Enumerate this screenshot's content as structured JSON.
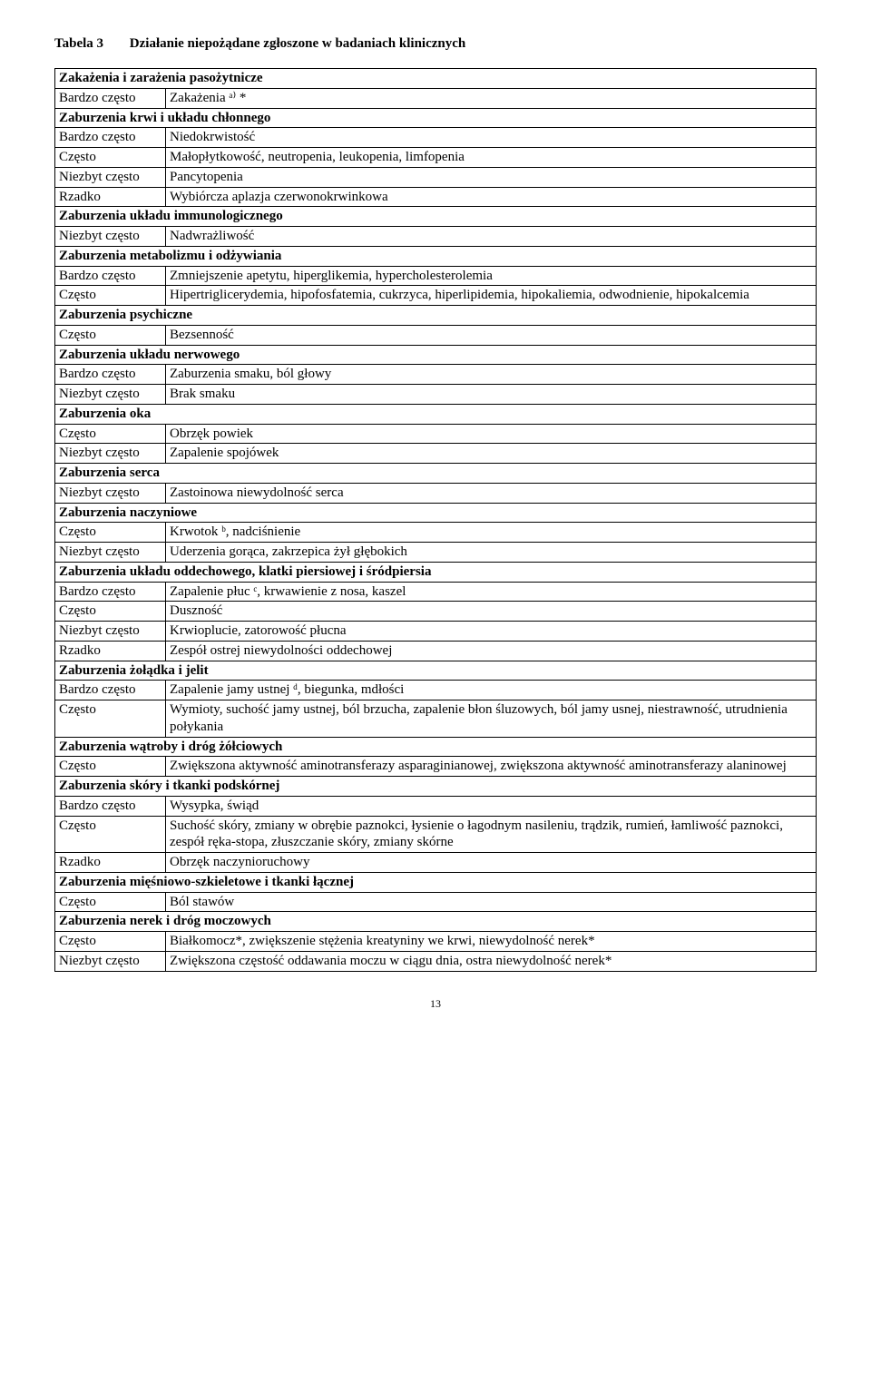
{
  "title_label": "Tabela 3",
  "title_text": "Działanie niepożądane zgłoszone w badaniach klinicznych",
  "page_number": "13",
  "rows": [
    {
      "type": "header",
      "text": "Zakażenia i zarażenia pasożytnicze"
    },
    {
      "type": "data",
      "freq": "Bardzo często",
      "desc": "Zakażenia ᵃ⁾ *"
    },
    {
      "type": "header",
      "text": "Zaburzenia krwi i układu chłonnego"
    },
    {
      "type": "data",
      "freq": "Bardzo często",
      "desc": "Niedokrwistość"
    },
    {
      "type": "data",
      "freq": "Często",
      "desc": "Małopłytkowość, neutropenia, leukopenia, limfopenia"
    },
    {
      "type": "data",
      "freq": "Niezbyt często",
      "desc": "Pancytopenia"
    },
    {
      "type": "data",
      "freq": "Rzadko",
      "desc": "Wybiórcza aplazja czerwonokrwinkowa"
    },
    {
      "type": "header",
      "text": "Zaburzenia układu immunologicznego"
    },
    {
      "type": "data",
      "freq": "Niezbyt często",
      "desc": "Nadwrażliwość"
    },
    {
      "type": "header",
      "text": "Zaburzenia metabolizmu i odżywiania"
    },
    {
      "type": "data",
      "freq": "Bardzo często",
      "desc": "Zmniejszenie apetytu, hiperglikemia, hypercholesterolemia"
    },
    {
      "type": "data",
      "freq": "Często",
      "desc": "Hipertriglicerydemia, hipofosfatemia, cukrzyca, hiperlipidemia, hipokaliemia, odwodnienie, hipokalcemia"
    },
    {
      "type": "header",
      "text": "Zaburzenia psychiczne"
    },
    {
      "type": "data",
      "freq": "Często",
      "desc": "Bezsenność"
    },
    {
      "type": "header",
      "text": "Zaburzenia układu nerwowego"
    },
    {
      "type": "data",
      "freq": "Bardzo często",
      "desc": "Zaburzenia smaku, ból głowy"
    },
    {
      "type": "data",
      "freq": "Niezbyt często",
      "desc": "Brak smaku"
    },
    {
      "type": "header",
      "text": "Zaburzenia oka"
    },
    {
      "type": "data",
      "freq": "Często",
      "desc": "Obrzęk powiek"
    },
    {
      "type": "data",
      "freq": "Niezbyt często",
      "desc": "Zapalenie spojówek"
    },
    {
      "type": "header",
      "text": "Zaburzenia serca"
    },
    {
      "type": "data",
      "freq": "Niezbyt często",
      "desc": "Zastoinowa niewydolność serca"
    },
    {
      "type": "header",
      "text": "Zaburzenia naczyniowe"
    },
    {
      "type": "data",
      "freq": "Często",
      "desc": "Krwotok ᵇ, nadciśnienie"
    },
    {
      "type": "data",
      "freq": "Niezbyt często",
      "desc": "Uderzenia gorąca, zakrzepica żył głębokich"
    },
    {
      "type": "header",
      "text": "Zaburzenia układu oddechowego, klatki piersiowej i śródpiersia"
    },
    {
      "type": "data",
      "freq": "Bardzo często",
      "desc": "Zapalenie płuc ᶜ, krwawienie z nosa, kaszel"
    },
    {
      "type": "data",
      "freq": "Często",
      "desc": "Duszność"
    },
    {
      "type": "data",
      "freq": "Niezbyt często",
      "desc": "Krwioplucie, zatorowość płucna"
    },
    {
      "type": "data",
      "freq": "Rzadko",
      "desc": "Zespół ostrej niewydolności oddechowej"
    },
    {
      "type": "header",
      "text": "Zaburzenia żołądka i jelit"
    },
    {
      "type": "data",
      "freq": "Bardzo często",
      "desc": "Zapalenie jamy ustnej ᵈ, biegunka, mdłości"
    },
    {
      "type": "data",
      "freq": "Często",
      "desc": "Wymioty, suchość jamy ustnej, ból brzucha, zapalenie błon śluzowych, ból jamy usnej, niestrawność, utrudnienia połykania"
    },
    {
      "type": "header",
      "text": "Zaburzenia wątroby i dróg żółciowych"
    },
    {
      "type": "data",
      "freq": "Często",
      "desc": "Zwiększona aktywność aminotransferazy asparaginianowej, zwiększona aktywność aminotransferazy alaninowej"
    },
    {
      "type": "header",
      "text": "Zaburzenia skóry i tkanki podskórnej"
    },
    {
      "type": "data",
      "freq": "Bardzo często",
      "desc": "Wysypka, świąd"
    },
    {
      "type": "data",
      "freq": "Często",
      "desc": "Suchość skóry, zmiany w obrębie paznokci, łysienie o łagodnym nasileniu, trądzik, rumień, łamliwość paznokci, zespół ręka-stopa, złuszczanie skóry, zmiany skórne"
    },
    {
      "type": "data",
      "freq": "Rzadko",
      "desc": "Obrzęk naczynioruchowy"
    },
    {
      "type": "header",
      "text": "Zaburzenia mięśniowo-szkieletowe i tkanki łącznej"
    },
    {
      "type": "data",
      "freq": "Często",
      "desc": "Ból stawów"
    },
    {
      "type": "header",
      "text": "Zaburzenia nerek i dróg moczowych"
    },
    {
      "type": "data",
      "freq": "Często",
      "desc": "Białkomocz*, zwiększenie stężenia kreatyniny we krwi, niewydolność nerek*"
    },
    {
      "type": "data",
      "freq": "Niezbyt często",
      "desc": "Zwiększona częstość oddawania moczu w ciągu dnia, ostra niewydolność nerek*"
    }
  ]
}
